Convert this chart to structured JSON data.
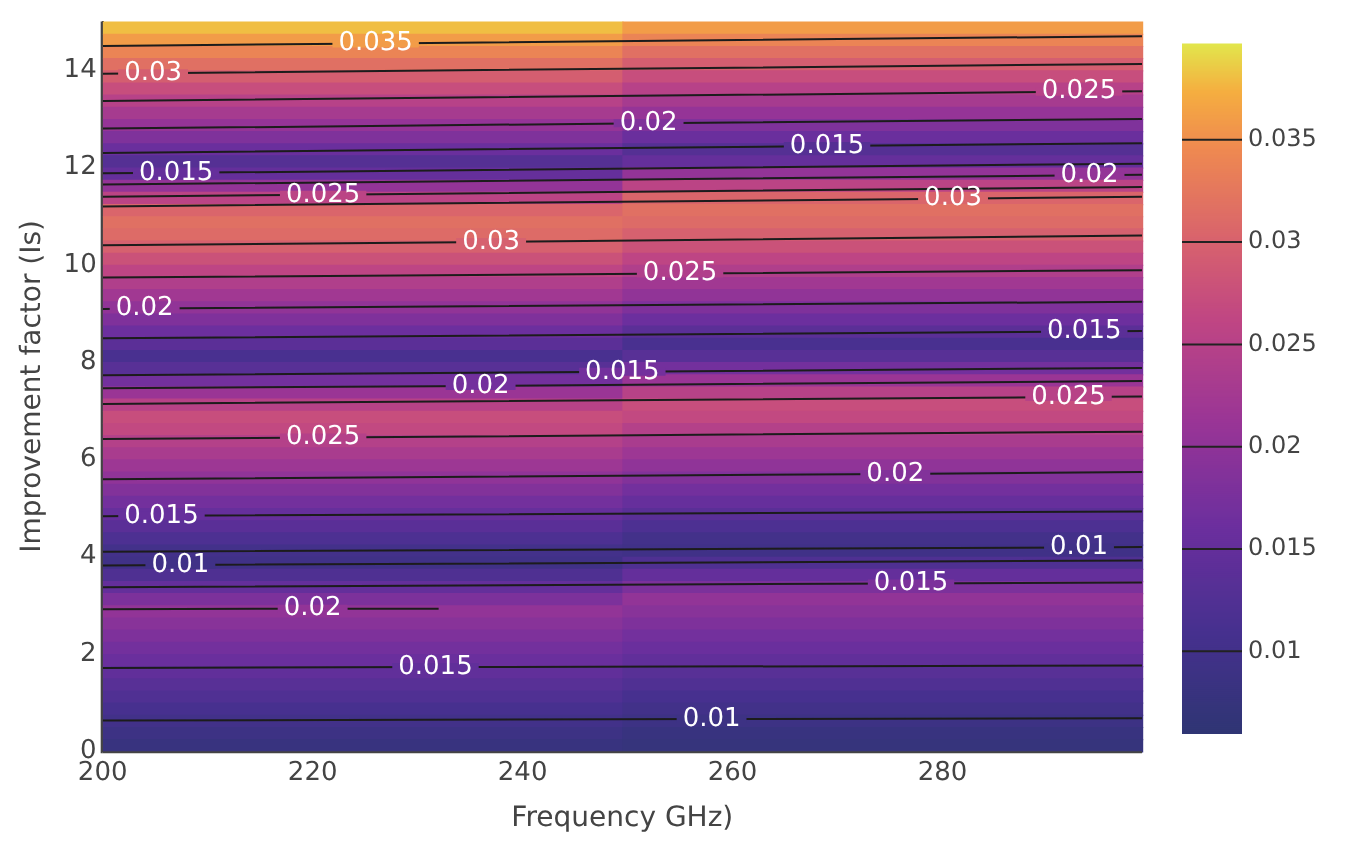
{
  "chart_data": {
    "type": "heatmap",
    "xlabel": "Frequency GHz)",
    "ylabel": "Improvement factor (Is)",
    "xlim": [
      200,
      299
    ],
    "xticks": [
      200,
      220,
      240,
      260,
      280
    ],
    "ylim": [
      0,
      15
    ],
    "yticks": [
      0,
      2,
      4,
      6,
      8,
      10,
      12,
      14
    ],
    "clim": [
      0.006,
      0.0397
    ],
    "cticks": [
      0.01,
      0.015,
      0.02,
      0.025,
      0.03,
      0.035
    ],
    "cells": [
      [
        0.038,
        0.036
      ],
      [
        0.036,
        0.0339
      ],
      [
        0.0339,
        0.0317
      ],
      [
        0.0317,
        0.0295
      ],
      [
        0.0295,
        0.0273
      ],
      [
        0.0273,
        0.025
      ],
      [
        0.025,
        0.0229
      ],
      [
        0.0229,
        0.0207
      ],
      [
        0.0207,
        0.0183
      ],
      [
        0.0183,
        0.0158
      ],
      [
        0.0158,
        0.0129
      ],
      [
        0.0129,
        0.0152
      ],
      [
        0.0152,
        0.0205
      ],
      [
        0.0205,
        0.0256
      ],
      [
        0.0256,
        0.0304
      ],
      [
        0.0304,
        0.0316
      ],
      [
        0.0316,
        0.0311
      ],
      [
        0.0311,
        0.0298
      ],
      [
        0.0298,
        0.0279
      ],
      [
        0.0279,
        0.026
      ],
      [
        0.026,
        0.0241
      ],
      [
        0.0241,
        0.0222
      ],
      [
        0.0222,
        0.0203
      ],
      [
        0.0203,
        0.0182
      ],
      [
        0.0182,
        0.0161
      ],
      [
        0.0161,
        0.0138
      ],
      [
        0.0138,
        0.0113
      ],
      [
        0.0113,
        0.0134
      ],
      [
        0.0134,
        0.0169
      ],
      [
        0.0169,
        0.0213
      ],
      [
        0.0213,
        0.0251
      ],
      [
        0.0251,
        0.0273
      ],
      [
        0.0273,
        0.0266
      ],
      [
        0.0266,
        0.0247
      ],
      [
        0.0247,
        0.0232
      ],
      [
        0.0232,
        0.0217
      ],
      [
        0.0217,
        0.0202
      ],
      [
        0.0202,
        0.0186
      ],
      [
        0.0186,
        0.0169
      ],
      [
        0.0169,
        0.0153
      ],
      [
        0.0153,
        0.0136
      ],
      [
        0.0136,
        0.0119
      ],
      [
        0.0119,
        0.0102
      ],
      [
        0.0102,
        0.0096
      ],
      [
        0.0096,
        0.0121
      ],
      [
        0.0121,
        0.015
      ],
      [
        0.015,
        0.0179
      ],
      [
        0.0179,
        0.0204
      ],
      [
        0.0204,
        0.0192
      ],
      [
        0.0192,
        0.0181
      ],
      [
        0.0181,
        0.0169
      ],
      [
        0.0169,
        0.0158
      ],
      [
        0.0158,
        0.0146
      ],
      [
        0.0146,
        0.0134
      ],
      [
        0.0134,
        0.0123
      ],
      [
        0.0123,
        0.0111
      ],
      [
        0.0111,
        0.01
      ],
      [
        0.01,
        0.009
      ],
      [
        0.009,
        0.008
      ],
      [
        0.008,
        0.0075
      ]
    ],
    "series": [
      {
        "type": "line",
        "name": "0.035",
        "color": "#1c1c1c",
        "x": [
          200,
          226,
          299
        ],
        "values": [
          14.5,
          14.55,
          14.7
        ]
      },
      {
        "type": "line",
        "name": "0.03",
        "color": "#1c1c1c",
        "x": [
          200,
          204.8,
          299
        ],
        "values": [
          13.93,
          13.94,
          14.13
        ]
      },
      {
        "type": "line",
        "name": "0.025",
        "color": "#1c1c1c",
        "x": [
          200,
          293,
          299
        ],
        "values": [
          13.37,
          13.56,
          13.57
        ]
      },
      {
        "type": "line",
        "name": "0.02",
        "color": "#1c1c1c",
        "x": [
          200,
          252,
          299
        ],
        "values": [
          12.8,
          12.91,
          13.0
        ]
      },
      {
        "type": "line",
        "name": "0.015",
        "color": "#1c1c1c",
        "x": [
          200,
          269,
          299
        ],
        "values": [
          12.3,
          12.44,
          12.5
        ]
      },
      {
        "type": "line",
        "name": "0.015",
        "color": "#1c1c1c",
        "x": [
          200,
          207,
          299
        ],
        "values": [
          11.88,
          11.89,
          12.08
        ]
      },
      {
        "type": "line",
        "name": "0.02",
        "color": "#1c1c1c",
        "x": [
          200,
          294,
          299
        ],
        "values": [
          11.65,
          11.84,
          11.85
        ]
      },
      {
        "type": "line",
        "name": "0.025",
        "color": "#1c1c1c",
        "x": [
          200,
          221,
          299
        ],
        "values": [
          11.4,
          11.44,
          11.6
        ]
      },
      {
        "type": "line",
        "name": "0.03",
        "color": "#1c1c1c",
        "x": [
          200,
          281,
          299
        ],
        "values": [
          11.2,
          11.36,
          11.4
        ]
      },
      {
        "type": "line",
        "name": "0.03",
        "color": "#1c1c1c",
        "x": [
          200,
          237,
          299
        ],
        "values": [
          10.4,
          10.47,
          10.6
        ]
      },
      {
        "type": "line",
        "name": "0.025",
        "color": "#1c1c1c",
        "x": [
          200,
          255,
          299
        ],
        "values": [
          9.74,
          9.82,
          9.89
        ]
      },
      {
        "type": "line",
        "name": "0.02",
        "color": "#1c1c1c",
        "x": [
          200,
          204,
          299
        ],
        "values": [
          9.09,
          9.1,
          9.24
        ]
      },
      {
        "type": "line",
        "name": "0.015",
        "color": "#1c1c1c",
        "x": [
          200,
          293.5,
          299
        ],
        "values": [
          8.49,
          8.63,
          8.64
        ]
      },
      {
        "type": "line",
        "name": "0.015",
        "color": "#1c1c1c",
        "x": [
          200,
          249.5,
          299
        ],
        "values": [
          7.73,
          7.8,
          7.88
        ]
      },
      {
        "type": "line",
        "name": "0.02",
        "color": "#1c1c1c",
        "x": [
          200,
          236,
          299
        ],
        "values": [
          7.46,
          7.51,
          7.61
        ]
      },
      {
        "type": "line",
        "name": "0.025",
        "color": "#1c1c1c",
        "x": [
          200,
          292,
          299
        ],
        "values": [
          7.14,
          7.28,
          7.29
        ]
      },
      {
        "type": "line",
        "name": "0.025",
        "color": "#1c1c1c",
        "x": [
          200,
          221,
          299
        ],
        "values": [
          6.42,
          6.45,
          6.57
        ]
      },
      {
        "type": "line",
        "name": "0.02",
        "color": "#1c1c1c",
        "x": [
          200,
          275.5,
          299
        ],
        "values": [
          5.59,
          5.7,
          5.74
        ]
      },
      {
        "type": "line",
        "name": "0.015",
        "color": "#1c1c1c",
        "x": [
          200,
          205.6,
          299
        ],
        "values": [
          4.83,
          4.84,
          4.93
        ]
      },
      {
        "type": "line",
        "name": "0.01",
        "color": "#1c1c1c",
        "x": [
          200,
          293,
          299
        ],
        "values": [
          4.1,
          4.19,
          4.2
        ]
      },
      {
        "type": "line",
        "name": "0.01",
        "color": "#1c1c1c",
        "x": [
          200,
          207.4,
          299
        ],
        "values": [
          3.82,
          3.83,
          3.92
        ]
      },
      {
        "type": "line",
        "name": "0.015",
        "color": "#1c1c1c",
        "x": [
          200,
          277,
          299
        ],
        "values": [
          3.37,
          3.45,
          3.47
        ]
      },
      {
        "type": "line",
        "name": "0.02",
        "color": "#1c1c1c",
        "x": [
          200,
          220,
          232
        ],
        "values": [
          2.92,
          2.93,
          2.93
        ]
      },
      {
        "type": "line",
        "name": "0.015",
        "color": "#1c1c1c",
        "x": [
          200,
          231.7,
          299
        ],
        "values": [
          1.71,
          1.73,
          1.76
        ]
      },
      {
        "type": "line",
        "name": "0.01",
        "color": "#1c1c1c",
        "x": [
          200,
          258,
          299
        ],
        "values": [
          0.63,
          0.66,
          0.68
        ]
      }
    ]
  }
}
